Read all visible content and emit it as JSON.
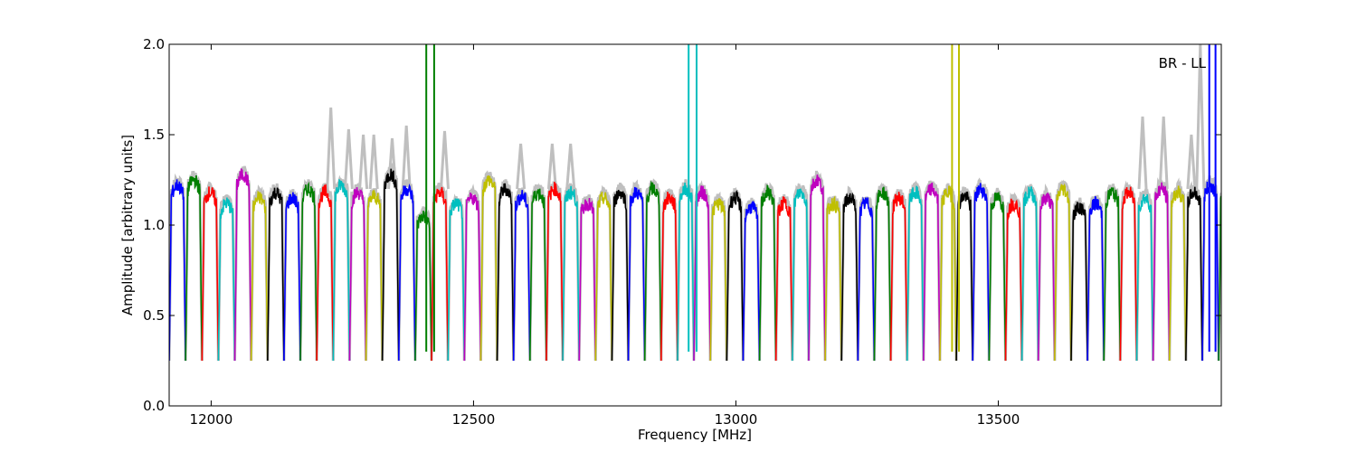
{
  "chart_data": {
    "type": "line",
    "title": "",
    "xlabel": "Frequency [MHz]",
    "ylabel": "Amplitude [arbitrary units]",
    "annotation": "BR - LL",
    "xlim": [
      11920,
      13925
    ],
    "ylim": [
      0.0,
      2.0
    ],
    "xticks": [
      {
        "value": 12000,
        "label": "12000"
      },
      {
        "value": 12500,
        "label": "12500"
      },
      {
        "value": 13000,
        "label": "13000"
      },
      {
        "value": 13500,
        "label": "13500"
      }
    ],
    "yticks": [
      {
        "value": 0.0,
        "label": "0.0"
      },
      {
        "value": 0.5,
        "label": "0.5"
      },
      {
        "value": 1.0,
        "label": "1.0"
      },
      {
        "value": 1.5,
        "label": "1.5"
      },
      {
        "value": 2.0,
        "label": "2.0"
      }
    ],
    "grid": false,
    "legend": "none",
    "channel_width_mhz": 31.25,
    "series_colors": [
      "#0000ff",
      "#007f00",
      "#ff0000",
      "#00bfbf",
      "#bf00bf",
      "#bfbf00",
      "#000000"
    ],
    "reference_color": "#bfbfbf",
    "channel_levels": [
      1.22,
      1.25,
      1.18,
      1.12,
      1.28,
      1.15,
      1.18,
      1.15,
      1.2,
      1.18,
      1.22,
      1.18,
      1.16,
      1.28,
      1.2,
      1.05,
      1.18,
      1.12,
      1.15,
      1.25,
      1.2,
      1.16,
      1.18,
      1.2,
      1.18,
      1.12,
      1.15,
      1.18,
      1.18,
      1.2,
      1.15,
      1.2,
      1.18,
      1.12,
      1.15,
      1.1,
      1.18,
      1.12,
      1.18,
      1.25,
      1.12,
      1.15,
      1.12,
      1.18,
      1.15,
      1.18,
      1.2,
      1.18,
      1.16,
      1.2,
      1.15,
      1.12,
      1.18,
      1.15,
      1.2,
      1.1,
      1.12,
      1.18,
      1.18,
      1.15,
      1.2,
      1.18,
      1.18,
      1.22,
      1.18,
      1.18,
      1.16
    ],
    "reference_peaks": [
      {
        "x": 12228,
        "y": 1.65
      },
      {
        "x": 12262,
        "y": 1.53
      },
      {
        "x": 12290,
        "y": 1.5
      },
      {
        "x": 12310,
        "y": 1.5
      },
      {
        "x": 12345,
        "y": 1.48
      },
      {
        "x": 12372,
        "y": 1.55
      },
      {
        "x": 12445,
        "y": 1.52
      },
      {
        "x": 12590,
        "y": 1.45
      },
      {
        "x": 12650,
        "y": 1.45
      },
      {
        "x": 12685,
        "y": 1.45
      },
      {
        "x": 13775,
        "y": 1.6
      },
      {
        "x": 13815,
        "y": 1.6
      },
      {
        "x": 13868,
        "y": 1.5
      },
      {
        "x": 13885,
        "y": 2.0
      }
    ],
    "spikes": [
      {
        "x": 12410,
        "color": "#007f00"
      },
      {
        "x": 12425,
        "color": "#007f00"
      },
      {
        "x": 12910,
        "color": "#00bfbf"
      },
      {
        "x": 12925,
        "color": "#00bfbf"
      },
      {
        "x": 13412,
        "color": "#bfbf00"
      },
      {
        "x": 13425,
        "color": "#bfbf00"
      },
      {
        "x": 13902,
        "color": "#0000ff"
      },
      {
        "x": 13914,
        "color": "#0000ff"
      }
    ]
  }
}
